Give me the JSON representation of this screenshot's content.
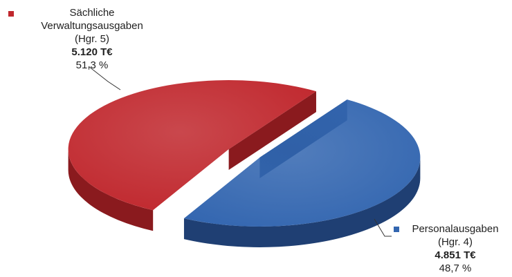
{
  "chart_data": {
    "type": "pie",
    "title": "",
    "slices": [
      {
        "name_lines": [
          "Sächliche",
          "Verwaltungsausgaben",
          "(Hgr. 5)"
        ],
        "amount": "5.120 T€",
        "percent_label": "51,3 %",
        "percent": 51.3,
        "value": 5120,
        "color": "#c0272d",
        "color_dark": "#8a1a1e"
      },
      {
        "name_lines": [
          "Personalausgaben",
          "(Hgr. 4)"
        ],
        "amount": "4.851 T€",
        "percent_label": "48,7 %",
        "percent": 48.7,
        "value": 4851,
        "color": "#3366b0",
        "color_dark": "#1f3f73"
      }
    ],
    "legend": "inline labels with leader lines",
    "style": "3d exploded pie"
  }
}
